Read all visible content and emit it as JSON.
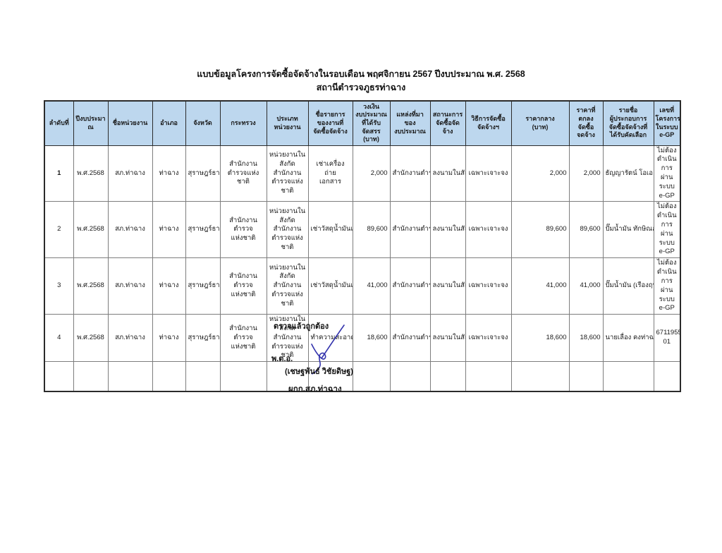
{
  "title": {
    "line1": "แบบข้อมูลโครงการจัดซื้อจัดจ้างในรอบเดือน พฤศจิกายน 2567 ปีงบประมาณ พ.ศ. 2568",
    "line2": "สถานีตำรวจภูธรท่าฉาง"
  },
  "colors": {
    "header_bg": "#BDD7EE",
    "signature_ink": "#3434ad",
    "border_dark": "#2b2b2b",
    "border_light": "#7d7d7d"
  },
  "table": {
    "columns": [
      "ลำดับที่",
      "ปีงบประมา\nณ",
      "ชื่อหน่วยงาน",
      "อำเภอ",
      "จังหวัด",
      "กระทรวง",
      "ประเภท\nหน่วยงาน",
      "ชื่อรายการ\nของงานที่\nจัดซื้อจัดจ้าง",
      "วงเงิน\nงบประมาณ\nที่ได้รับ\nจัดสรร (บาท)",
      "แหล่งที่มา\nของ\nงบประมาณ",
      "สถานะการ\nจัดซื้อจัด\nจ้าง",
      "วิธีการจัดซื้อ\nจัดจ้างฯ",
      "ราคากลาง\n(บาท)",
      "ราคาที่\nตกลง\nจัดซื้อ\nจดจ้าง",
      "รายชื่อ\nผู้ประกอบการ\nจัดซื้อจัดจ้างที่\nได้รับคัดเลือก",
      "เลขที่\nโครงการ\nในระบบ\ne-GP"
    ],
    "rows": [
      [
        "1",
        "พ.ศ.2568",
        "สภ.ท่าฉาง",
        "ท่าฉาง",
        "สุราษฎร์ธานี",
        "สำนักงาน\nตำรวจแห่งชาติ",
        "หน่วยงานใน\nสังกัด\nสำนักงาน\nตำรวจแห่งชาติ",
        "เช่าเครื่องถ่าย\nเอกสาร",
        "2,000",
        "สำนักงานตำรวจแห่งชาติ",
        "ลงนามในสัญญา",
        "เฉพาะเจาะจง",
        "2,000",
        "2,000",
        "ธัญญารัตน์ โอเอ จำกัด",
        "ไม่ต้อง\nดำเนินการ\nผ่านระบบ\ne-GP"
      ],
      [
        "2",
        "พ.ศ.2568",
        "สภ.ท่าฉาง",
        "ท่าฉาง",
        "สุราษฎร์ธานี",
        "สำนักงานตำรวจ\nแห่งชาติ",
        "หน่วยงานใน\nสังกัดสำนักงาน\nตำรวจแห่งชาติ",
        "เช่าวัสดุน้ำมันเชื้อเพลิง",
        "89,600",
        "สำนักงานตำรวจแห่งชาติ",
        "ลงนามในสัญญา",
        "เฉพาะเจาะจง",
        "89,600",
        "89,600",
        "ปั๊มน้ำมัน ทักษิณออยล์ จำกัด",
        "ไม่ต้อง\nดำเนินการ\nผ่านระบบ\ne-GP"
      ],
      [
        "3",
        "พ.ศ.2568",
        "สภ.ท่าฉาง",
        "ท่าฉาง",
        "สุราษฎร์ธานี",
        "สำนักงานตำรวจ\nแห่งชาติ",
        "หน่วยงานใน\nสังกัดสำนักงาน\nตำรวจแห่งชาติ",
        "เช่าวัสดุน้ำมันเชื้อเพลิง",
        "41,000",
        "สำนักงานตำรวจแห่งชาติ",
        "ลงนามในสัญญา",
        "เฉพาะเจาะจง",
        "41,000",
        "41,000",
        "ปั๊มน้ำมัน (เรืองฤทธิ์ บริการ)",
        "ไม่ต้อง\nดำเนินการ\nผ่านระบบ\ne-GP"
      ],
      [
        "4",
        "พ.ศ.2568",
        "สภ.ท่าฉาง",
        "ท่าฉาง",
        "สุราษฎร์ธานี",
        "สำนักงานตำรวจ\nแห่งชาติ",
        "หน่วยงานใน\nสังกัดสำนักงาน\nตำรวจแห่งชาติ",
        "ทำความสะอาดเครื่องปรับอากาศ",
        "18,600",
        "สำนักงานตำรวจแห่งชาติ",
        "ลงนามในสัญญา",
        "เฉพาะเจาะจง",
        "18,600",
        "18,600",
        "นายเลื่อง คงท่าฉาง",
        "67119552\n01"
      ],
      [
        "",
        "",
        "",
        "",
        "",
        "",
        "",
        "",
        "",
        "",
        "",
        "",
        "",
        "",
        "",
        ""
      ]
    ]
  },
  "footer": {
    "checked_label": "ตรวจแล้วถูกต้อง",
    "rank": "พ.ต.อ.",
    "name": "(เชษฐพันธ์ วิชัยดิษฐ)",
    "position": "ผกก.สภ.ท่าฉาง"
  }
}
